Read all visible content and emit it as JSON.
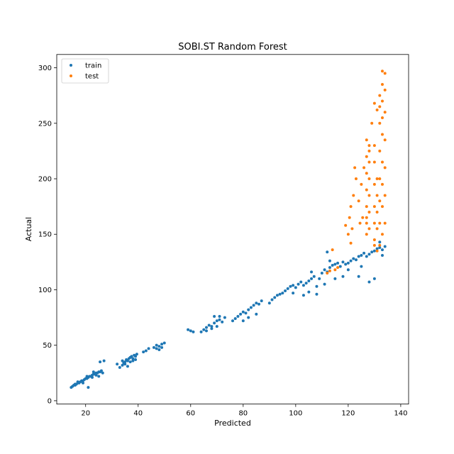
{
  "chart_data": {
    "type": "scatter",
    "title": "SOBI.ST Random Forest",
    "xlabel": "Predicted",
    "ylabel": "Actual",
    "xlim": [
      9,
      143
    ],
    "ylim": [
      -3,
      312
    ],
    "xticks": [
      20,
      40,
      60,
      80,
      100,
      120,
      140
    ],
    "yticks": [
      0,
      50,
      100,
      150,
      200,
      250,
      300
    ],
    "legend": "top-left",
    "grid": false,
    "series": [
      {
        "name": "train",
        "color": "#1f77b4",
        "points": [
          [
            14.5,
            12
          ],
          [
            15,
            13
          ],
          [
            15.5,
            14
          ],
          [
            16,
            14
          ],
          [
            16.5,
            15
          ],
          [
            17,
            16
          ],
          [
            17.5,
            16
          ],
          [
            18,
            17
          ],
          [
            18.5,
            18
          ],
          [
            19,
            18
          ],
          [
            19.5,
            19
          ],
          [
            20,
            20
          ],
          [
            20.5,
            20
          ],
          [
            21,
            21
          ],
          [
            21.5,
            22
          ],
          [
            22,
            22
          ],
          [
            22.5,
            23
          ],
          [
            23,
            24
          ],
          [
            23.5,
            24
          ],
          [
            24,
            25
          ],
          [
            24.5,
            25
          ],
          [
            25,
            26
          ],
          [
            25.5,
            26
          ],
          [
            26,
            27
          ],
          [
            26.5,
            25
          ],
          [
            27,
            36
          ],
          [
            25.5,
            35
          ],
          [
            21,
            12
          ],
          [
            22.5,
            21
          ],
          [
            23,
            26
          ],
          [
            16,
            15
          ],
          [
            17,
            17
          ],
          [
            19,
            16
          ],
          [
            20.5,
            22
          ],
          [
            24,
            23
          ],
          [
            25,
            22
          ],
          [
            33,
            30
          ],
          [
            34,
            32
          ],
          [
            34.5,
            34
          ],
          [
            35,
            35
          ],
          [
            35.5,
            37
          ],
          [
            36,
            36
          ],
          [
            36.5,
            38
          ],
          [
            37,
            39
          ],
          [
            37.5,
            40
          ],
          [
            38,
            38
          ],
          [
            38.5,
            41
          ],
          [
            39,
            40
          ],
          [
            39.5,
            42
          ],
          [
            35,
            33
          ],
          [
            36,
            31
          ],
          [
            37,
            35
          ],
          [
            38,
            36
          ],
          [
            34,
            36
          ],
          [
            39,
            37
          ],
          [
            32,
            33
          ],
          [
            42,
            44
          ],
          [
            43,
            45
          ],
          [
            44,
            47
          ],
          [
            46,
            48
          ],
          [
            47,
            50
          ],
          [
            48,
            49
          ],
          [
            49,
            51
          ],
          [
            50,
            52
          ],
          [
            47,
            47
          ],
          [
            48,
            46
          ],
          [
            49,
            48
          ],
          [
            59,
            64
          ],
          [
            60,
            63
          ],
          [
            61,
            62
          ],
          [
            64,
            62
          ],
          [
            65,
            64
          ],
          [
            66,
            66
          ],
          [
            67,
            68
          ],
          [
            68,
            67
          ],
          [
            69,
            70
          ],
          [
            70,
            72
          ],
          [
            71,
            73
          ],
          [
            72,
            71
          ],
          [
            73,
            75
          ],
          [
            66,
            63
          ],
          [
            70,
            67
          ],
          [
            68,
            65
          ],
          [
            69,
            76
          ],
          [
            71,
            76
          ],
          [
            76,
            72
          ],
          [
            77,
            74
          ],
          [
            78,
            76
          ],
          [
            79,
            78
          ],
          [
            80,
            80
          ],
          [
            81,
            79
          ],
          [
            82,
            82
          ],
          [
            83,
            84
          ],
          [
            84,
            86
          ],
          [
            85,
            88
          ],
          [
            86,
            87
          ],
          [
            85,
            78
          ],
          [
            87,
            90
          ],
          [
            82,
            75
          ],
          [
            80,
            72
          ],
          [
            90,
            88
          ],
          [
            91,
            91
          ],
          [
            92,
            93
          ],
          [
            93,
            95
          ],
          [
            94,
            96
          ],
          [
            95,
            97
          ],
          [
            96,
            99
          ],
          [
            97,
            101
          ],
          [
            98,
            103
          ],
          [
            99,
            104
          ],
          [
            100,
            102
          ],
          [
            101,
            105
          ],
          [
            102,
            107
          ],
          [
            103,
            104
          ],
          [
            104,
            106
          ],
          [
            105,
            108
          ],
          [
            106,
            110
          ],
          [
            107,
            112
          ],
          [
            108,
            103
          ],
          [
            109,
            110
          ],
          [
            110,
            115
          ],
          [
            111,
            118
          ],
          [
            112,
            116
          ],
          [
            113,
            120
          ],
          [
            114,
            122
          ],
          [
            115,
            123
          ],
          [
            116,
            124
          ],
          [
            117,
            121
          ],
          [
            118,
            125
          ],
          [
            119,
            123
          ],
          [
            120,
            124
          ],
          [
            121,
            126
          ],
          [
            122,
            128
          ],
          [
            123,
            127
          ],
          [
            124,
            130
          ],
          [
            125,
            131
          ],
          [
            126,
            133
          ],
          [
            127,
            130
          ],
          [
            128,
            132
          ],
          [
            129,
            134
          ],
          [
            130,
            135
          ],
          [
            131,
            137
          ],
          [
            132,
            138
          ],
          [
            133,
            136
          ],
          [
            134,
            139
          ],
          [
            112,
            134
          ],
          [
            115,
            110
          ],
          [
            118,
            112
          ],
          [
            108,
            96
          ],
          [
            105,
            98
          ],
          [
            111,
            105
          ],
          [
            124,
            112
          ],
          [
            128,
            107
          ],
          [
            130,
            110
          ],
          [
            113,
            126
          ],
          [
            120,
            118
          ],
          [
            106,
            116
          ],
          [
            103,
            95
          ],
          [
            99,
            97
          ],
          [
            125,
            121
          ],
          [
            132,
            143
          ],
          [
            133,
            131
          ]
        ]
      },
      {
        "name": "test",
        "color": "#ff7f0e",
        "points": [
          [
            112,
            115
          ],
          [
            113,
            117
          ],
          [
            114,
            136
          ],
          [
            115,
            118
          ],
          [
            116,
            120
          ],
          [
            120,
            150
          ],
          [
            120.5,
            165
          ],
          [
            121,
            175
          ],
          [
            121.5,
            155
          ],
          [
            122,
            185
          ],
          [
            122.5,
            210
          ],
          [
            123,
            200
          ],
          [
            124,
            180
          ],
          [
            124.5,
            160
          ],
          [
            125,
            195
          ],
          [
            125.5,
            165
          ],
          [
            127,
            160
          ],
          [
            127,
            175
          ],
          [
            127,
            190
          ],
          [
            127,
            205
          ],
          [
            127,
            220
          ],
          [
            127,
            235
          ],
          [
            127,
            150
          ],
          [
            127,
            165
          ],
          [
            128,
            170
          ],
          [
            128,
            185
          ],
          [
            128,
            200
          ],
          [
            128,
            215
          ],
          [
            128,
            230
          ],
          [
            128,
            155
          ],
          [
            130,
            175
          ],
          [
            130,
            195
          ],
          [
            130,
            215
          ],
          [
            130,
            230
          ],
          [
            130,
            160
          ],
          [
            130,
            145
          ],
          [
            130,
            140
          ],
          [
            131,
            155
          ],
          [
            131,
            170
          ],
          [
            131,
            185
          ],
          [
            131,
            200
          ],
          [
            131,
            135
          ],
          [
            132,
            140
          ],
          [
            132,
            160
          ],
          [
            132,
            180
          ],
          [
            132,
            200
          ],
          [
            132,
            225
          ],
          [
            132,
            250
          ],
          [
            132,
            265
          ],
          [
            132,
            275
          ],
          [
            133,
            150
          ],
          [
            133,
            175
          ],
          [
            133,
            195
          ],
          [
            133,
            215
          ],
          [
            133,
            240
          ],
          [
            133,
            255
          ],
          [
            133,
            270
          ],
          [
            133,
            285
          ],
          [
            133,
            297
          ],
          [
            134,
            160
          ],
          [
            134,
            185
          ],
          [
            134,
            210
          ],
          [
            134,
            235
          ],
          [
            134,
            260
          ],
          [
            134,
            280
          ],
          [
            134,
            295
          ],
          [
            129,
            250
          ],
          [
            131,
            262
          ],
          [
            130,
            268
          ],
          [
            128,
            225
          ],
          [
            126,
            210
          ],
          [
            121,
            142
          ],
          [
            119,
            158
          ]
        ]
      }
    ]
  }
}
